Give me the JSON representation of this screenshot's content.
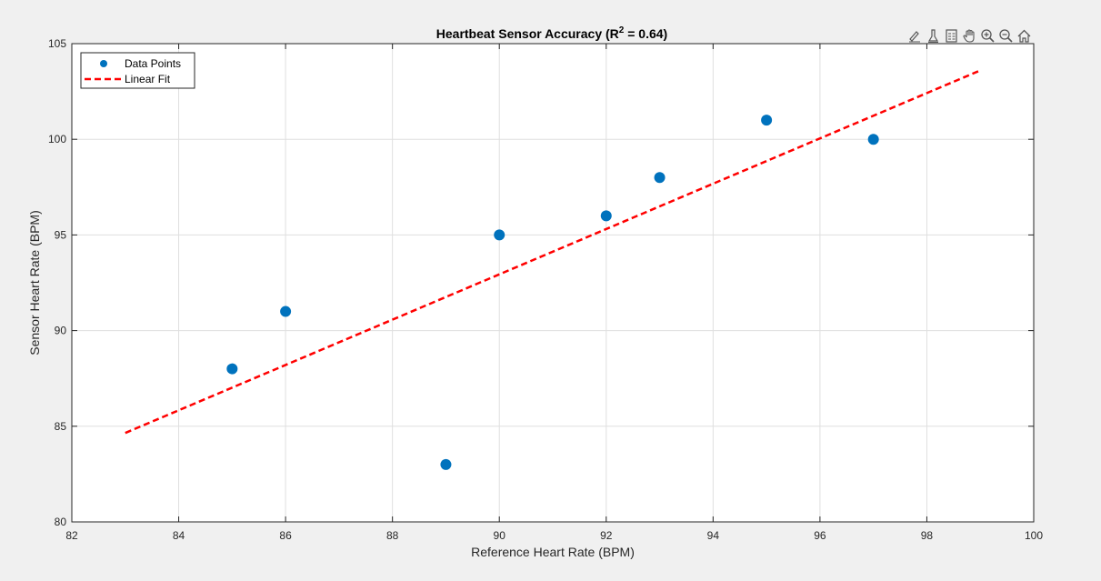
{
  "chart_data": {
    "type": "scatter",
    "title": "Heartbeat Sensor Accuracy (R",
    "title_sup": "2",
    "title_suffix": " = 0.64)",
    "xlabel": "Reference Heart Rate (BPM)",
    "ylabel": "Sensor Heart Rate (BPM)",
    "xlim": [
      82,
      100
    ],
    "ylim": [
      80,
      105
    ],
    "xticks": [
      82,
      84,
      86,
      88,
      90,
      92,
      94,
      96,
      98,
      100
    ],
    "yticks": [
      80,
      85,
      90,
      95,
      100,
      105
    ],
    "grid": true,
    "legend_position": "top-left",
    "series": [
      {
        "name": "Data Points",
        "kind": "scatter",
        "color": "#0072BD",
        "x": [
          85,
          86,
          89,
          90,
          92,
          93,
          95,
          97
        ],
        "y": [
          88,
          91,
          83,
          95,
          96,
          98,
          101,
          100
        ]
      },
      {
        "name": "Linear Fit",
        "kind": "line",
        "style": "dashed",
        "color": "#FF0000",
        "x": [
          83,
          99
        ],
        "y": [
          84.65,
          103.6
        ]
      }
    ]
  },
  "toolbar": {
    "icons": [
      "brush-icon",
      "data-tips-icon",
      "legend-icon",
      "pan-icon",
      "zoom-in-icon",
      "zoom-out-icon",
      "home-icon"
    ]
  }
}
